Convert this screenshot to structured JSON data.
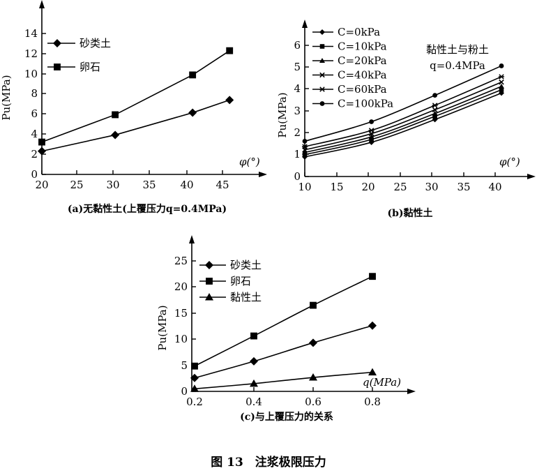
{
  "figure_caption": "图 13　注浆极限压力",
  "chart_data": [
    {
      "id": "a",
      "type": "line",
      "caption": "(a)无黏性土(上覆压力q=0.4MPa)",
      "ylabel": "Pu(MPa)",
      "xlabel": "φ(°)",
      "x_ticks": [
        20,
        25,
        30,
        35,
        40,
        45
      ],
      "y_ticks": [
        0,
        2,
        4,
        6,
        8,
        10,
        12,
        14
      ],
      "xlim": [
        20,
        48
      ],
      "ylim": [
        0,
        15
      ],
      "legend_position": "top-left",
      "series": [
        {
          "name": "砂类土",
          "marker": "diamond",
          "x": [
            20,
            30.3,
            40.8,
            46
          ],
          "y": [
            2.3,
            3.9,
            6.1,
            7.35
          ]
        },
        {
          "name": "卵石",
          "marker": "square",
          "x": [
            20,
            30.3,
            40.8,
            46
          ],
          "y": [
            3.2,
            5.9,
            9.9,
            12.3
          ]
        }
      ]
    },
    {
      "id": "b",
      "type": "line",
      "caption": "(b)黏性土",
      "ylabel": "Pu(MPa)",
      "xlabel": "φ(°)",
      "annotation_lines": [
        "黏性土与粉土",
        "q=0.4MPa"
      ],
      "x_ticks": [
        10,
        15,
        20,
        25,
        30,
        35,
        40
      ],
      "y_ticks": [
        0,
        1,
        2,
        3,
        4,
        5,
        6
      ],
      "xlim": [
        10,
        43
      ],
      "ylim": [
        0,
        7
      ],
      "legend_position": "top-left",
      "series": [
        {
          "name": "C=0kPa",
          "marker": "diamond",
          "x": [
            10,
            20.5,
            30.5,
            41
          ],
          "y": [
            0.88,
            1.55,
            2.6,
            3.8
          ]
        },
        {
          "name": "C=10kPa",
          "marker": "square",
          "x": [
            10,
            20.5,
            30.5,
            41
          ],
          "y": [
            0.98,
            1.68,
            2.75,
            3.95
          ]
        },
        {
          "name": "C=20kPa",
          "marker": "triangle",
          "x": [
            10,
            20.5,
            30.5,
            41
          ],
          "y": [
            1.08,
            1.8,
            2.88,
            4.1
          ]
        },
        {
          "name": "C=40kPa",
          "marker": "x",
          "x": [
            10,
            20.5,
            30.5,
            41
          ],
          "y": [
            1.2,
            1.95,
            3.05,
            4.3
          ]
        },
        {
          "name": "C=60kPa",
          "marker": "star",
          "x": [
            10,
            20.5,
            30.5,
            41
          ],
          "y": [
            1.35,
            2.1,
            3.25,
            4.55
          ]
        },
        {
          "name": "C=100kPa",
          "marker": "circle",
          "x": [
            10,
            20.5,
            30.5,
            41
          ],
          "y": [
            1.6,
            2.5,
            3.7,
            5.05
          ]
        }
      ]
    },
    {
      "id": "c",
      "type": "line",
      "caption": "(c)与上覆压力的关系",
      "ylabel": "Pu(MPa)",
      "xlabel": "q(MPa)",
      "x_ticks": [
        0.2,
        0.4,
        0.6,
        0.8
      ],
      "y_ticks": [
        0,
        5,
        10,
        15,
        20,
        25
      ],
      "xlim": [
        0.2,
        0.88
      ],
      "ylim": [
        0,
        27
      ],
      "legend_position": "top-left",
      "series": [
        {
          "name": "砂类土",
          "marker": "diamond",
          "x": [
            0.2,
            0.4,
            0.6,
            0.8
          ],
          "y": [
            2.6,
            5.8,
            9.3,
            12.6
          ]
        },
        {
          "name": "卵石",
          "marker": "square",
          "x": [
            0.2,
            0.4,
            0.6,
            0.8
          ],
          "y": [
            4.9,
            10.6,
            16.5,
            22.0
          ]
        },
        {
          "name": "黏性土",
          "marker": "triangle",
          "x": [
            0.2,
            0.4,
            0.6,
            0.8
          ],
          "y": [
            0.5,
            1.5,
            2.7,
            3.7
          ]
        }
      ]
    }
  ]
}
